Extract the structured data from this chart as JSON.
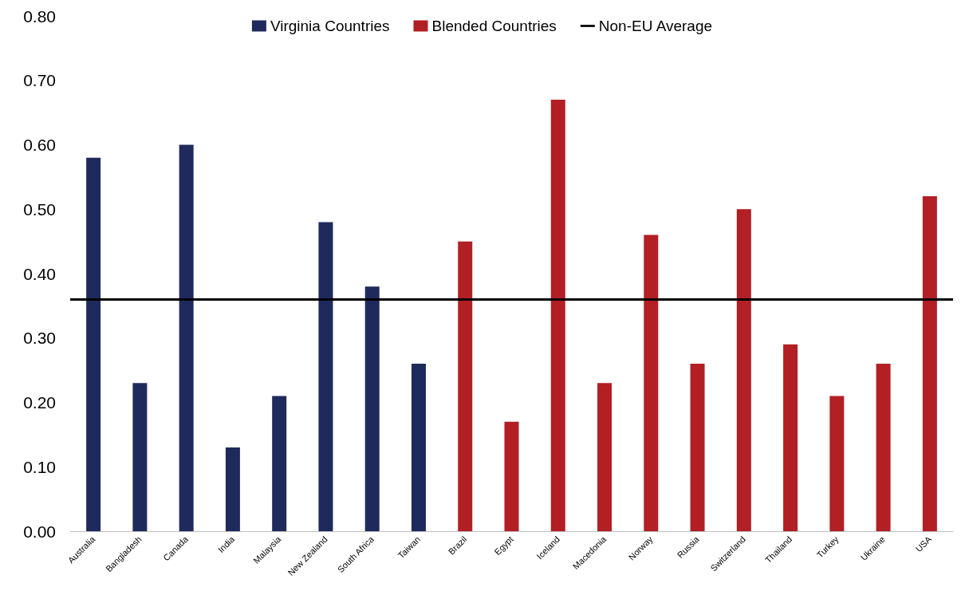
{
  "chart_data": {
    "type": "bar",
    "categories": [
      "Australia",
      "Bangladesh",
      "Canada",
      "India",
      "Malaysia",
      "New Zealand",
      "South Africa",
      "Taiwan",
      "Brazil",
      "Egypt",
      "Iceland",
      "Macedonia",
      "Norway",
      "Russia",
      "Switzerland",
      "Thailand",
      "Turkey",
      "Ukraine",
      "USA"
    ],
    "series": [
      {
        "name": "Virginia Countries",
        "color": "#1f2a5c",
        "values": [
          0.58,
          0.23,
          0.6,
          0.13,
          0.21,
          0.48,
          0.38,
          0.26,
          null,
          null,
          null,
          null,
          null,
          null,
          null,
          null,
          null,
          null,
          null
        ]
      },
      {
        "name": "Blended Countries",
        "color": "#b21f24",
        "values": [
          null,
          null,
          null,
          null,
          null,
          null,
          null,
          null,
          0.45,
          0.17,
          0.67,
          0.23,
          0.46,
          0.26,
          0.5,
          0.29,
          0.21,
          0.26,
          0.52
        ]
      }
    ],
    "ref_lines": [
      {
        "axis": "y",
        "value": 0.36,
        "label": "Non-EU Average",
        "color": "#000000",
        "line_style": "solid"
      }
    ],
    "ylim": [
      0,
      0.8
    ],
    "yticks": [
      {
        "value": 0,
        "label": "0.00"
      },
      {
        "value": 0.1,
        "label": "0.10"
      },
      {
        "value": 0.2,
        "label": "0.20"
      },
      {
        "value": 0.3,
        "label": "0.30"
      },
      {
        "value": 0.4,
        "label": "0.40"
      },
      {
        "value": 0.5,
        "label": "0.50"
      },
      {
        "value": 0.6,
        "label": "0.60"
      },
      {
        "value": 0.7,
        "label": "0.70"
      },
      {
        "value": 0.8,
        "label": "0.80"
      }
    ],
    "grid": false,
    "legend": "top"
  }
}
